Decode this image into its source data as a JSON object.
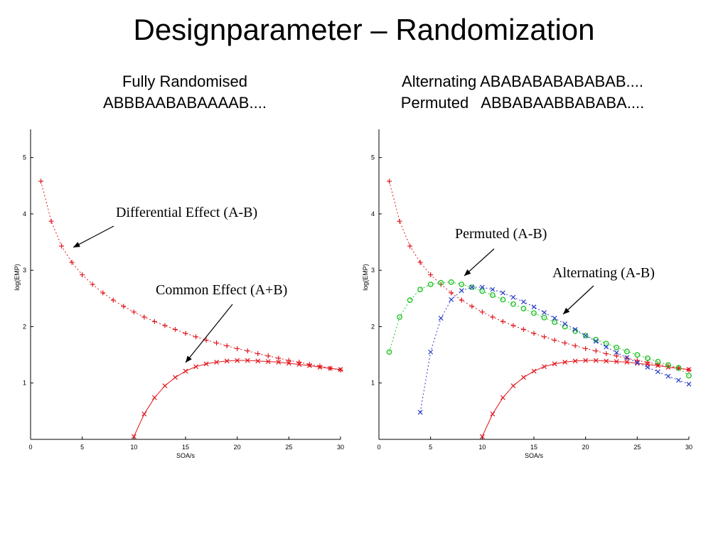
{
  "title": "Designparameter – Randomization",
  "subtitles": {
    "left": [
      "Fully Randomised",
      "ABBBAABABAAAAB...."
    ],
    "right": [
      "Alternating ABABABABABABAB....",
      "Permuted   ABBABAABBABABA...."
    ]
  },
  "colors": {
    "differential": "#e0161c",
    "common": "#e0161c",
    "permuted": "#22c42a",
    "alternating": "#2a3cc8",
    "axis": "#000000"
  },
  "chart_data": [
    {
      "type": "scatter",
      "xlabel": "SOA/s",
      "ylabel": "log(EMP)",
      "xlim": [
        0,
        30
      ],
      "ylim": [
        0,
        5.5
      ],
      "xticks": [
        "0",
        "5",
        "10",
        "15",
        "20",
        "25",
        "30"
      ],
      "yticks": [
        "1",
        "2",
        "3",
        "4",
        "5"
      ],
      "annotations": [
        "Differential Effect (A-B)",
        "Common Effect (A+B)"
      ],
      "series": [
        {
          "label": "Differential Effect (A-B)",
          "marker": "+",
          "color": "#e0161c",
          "x": [
            1,
            2,
            3,
            4,
            5,
            6,
            7,
            8,
            9,
            10,
            11,
            12,
            13,
            14,
            15,
            16,
            17,
            18,
            19,
            20,
            21,
            22,
            23,
            24,
            25,
            26,
            27,
            28,
            29,
            30
          ],
          "y": [
            4.58,
            3.87,
            3.43,
            3.14,
            2.92,
            2.75,
            2.6,
            2.47,
            2.36,
            2.26,
            2.17,
            2.09,
            2.02,
            1.95,
            1.88,
            1.82,
            1.76,
            1.71,
            1.66,
            1.61,
            1.57,
            1.52,
            1.48,
            1.44,
            1.4,
            1.37,
            1.33,
            1.3,
            1.26,
            1.23
          ]
        },
        {
          "label": "Common Effect (A+B)",
          "marker": "x",
          "color": "#e0161c",
          "x": [
            10,
            11,
            12,
            13,
            14,
            15,
            16,
            17,
            18,
            19,
            20,
            21,
            22,
            23,
            24,
            25,
            26,
            27,
            28,
            29,
            30
          ],
          "y": [
            0.05,
            0.45,
            0.74,
            0.95,
            1.1,
            1.21,
            1.29,
            1.34,
            1.37,
            1.39,
            1.4,
            1.4,
            1.39,
            1.38,
            1.37,
            1.35,
            1.33,
            1.31,
            1.28,
            1.26,
            1.24
          ]
        }
      ]
    },
    {
      "type": "scatter",
      "xlabel": "SOA/s",
      "ylabel": "log(EMP)",
      "xlim": [
        0,
        30
      ],
      "ylim": [
        0,
        5.5
      ],
      "xticks": [
        "0",
        "5",
        "10",
        "15",
        "20",
        "25",
        "30"
      ],
      "yticks": [
        "1",
        "2",
        "3",
        "4",
        "5"
      ],
      "annotations": [
        "Permuted (A-B)",
        "Alternating (A-B)"
      ],
      "series": [
        {
          "label": "Differential Effect (A-B)",
          "marker": "+",
          "color": "#e0161c",
          "x": [
            1,
            2,
            3,
            4,
            5,
            6,
            7,
            8,
            9,
            10,
            11,
            12,
            13,
            14,
            15,
            16,
            17,
            18,
            19,
            20,
            21,
            22,
            23,
            24,
            25,
            26,
            27,
            28,
            29,
            30
          ],
          "y": [
            4.58,
            3.87,
            3.43,
            3.14,
            2.92,
            2.75,
            2.6,
            2.47,
            2.36,
            2.26,
            2.17,
            2.09,
            2.02,
            1.95,
            1.88,
            1.82,
            1.76,
            1.71,
            1.66,
            1.61,
            1.57,
            1.52,
            1.48,
            1.44,
            1.4,
            1.37,
            1.33,
            1.3,
            1.26,
            1.23
          ]
        },
        {
          "label": "Common Effect (A+B)",
          "marker": "x",
          "color": "#e0161c",
          "x": [
            10,
            11,
            12,
            13,
            14,
            15,
            16,
            17,
            18,
            19,
            20,
            21,
            22,
            23,
            24,
            25,
            26,
            27,
            28,
            29,
            30
          ],
          "y": [
            0.05,
            0.45,
            0.74,
            0.95,
            1.1,
            1.21,
            1.29,
            1.34,
            1.37,
            1.39,
            1.4,
            1.4,
            1.39,
            1.38,
            1.37,
            1.35,
            1.33,
            1.31,
            1.28,
            1.26,
            1.24
          ]
        },
        {
          "label": "Permuted (A-B)",
          "marker": "o",
          "color": "#22c42a",
          "x": [
            1,
            2,
            3,
            4,
            5,
            6,
            7,
            8,
            9,
            10,
            11,
            12,
            13,
            14,
            15,
            16,
            17,
            18,
            19,
            20,
            21,
            22,
            23,
            24,
            25,
            26,
            27,
            28,
            29,
            30
          ],
          "y": [
            1.55,
            2.17,
            2.47,
            2.66,
            2.75,
            2.78,
            2.79,
            2.75,
            2.7,
            2.63,
            2.56,
            2.48,
            2.4,
            2.32,
            2.24,
            2.16,
            2.08,
            2.0,
            1.92,
            1.84,
            1.77,
            1.7,
            1.63,
            1.56,
            1.5,
            1.44,
            1.38,
            1.32,
            1.27,
            1.13
          ]
        },
        {
          "label": "Alternating (A-B)",
          "marker": "x",
          "color": "#2a3cc8",
          "x": [
            4,
            5,
            6,
            7,
            8,
            9,
            10,
            11,
            12,
            13,
            14,
            15,
            16,
            17,
            18,
            19,
            20,
            21,
            22,
            23,
            24,
            25,
            26,
            27,
            28,
            29,
            30
          ],
          "y": [
            0.48,
            1.55,
            2.15,
            2.48,
            2.64,
            2.7,
            2.7,
            2.66,
            2.6,
            2.52,
            2.44,
            2.35,
            2.25,
            2.15,
            2.05,
            1.95,
            1.84,
            1.74,
            1.64,
            1.54,
            1.45,
            1.36,
            1.28,
            1.2,
            1.12,
            1.05,
            0.98
          ]
        }
      ]
    }
  ]
}
